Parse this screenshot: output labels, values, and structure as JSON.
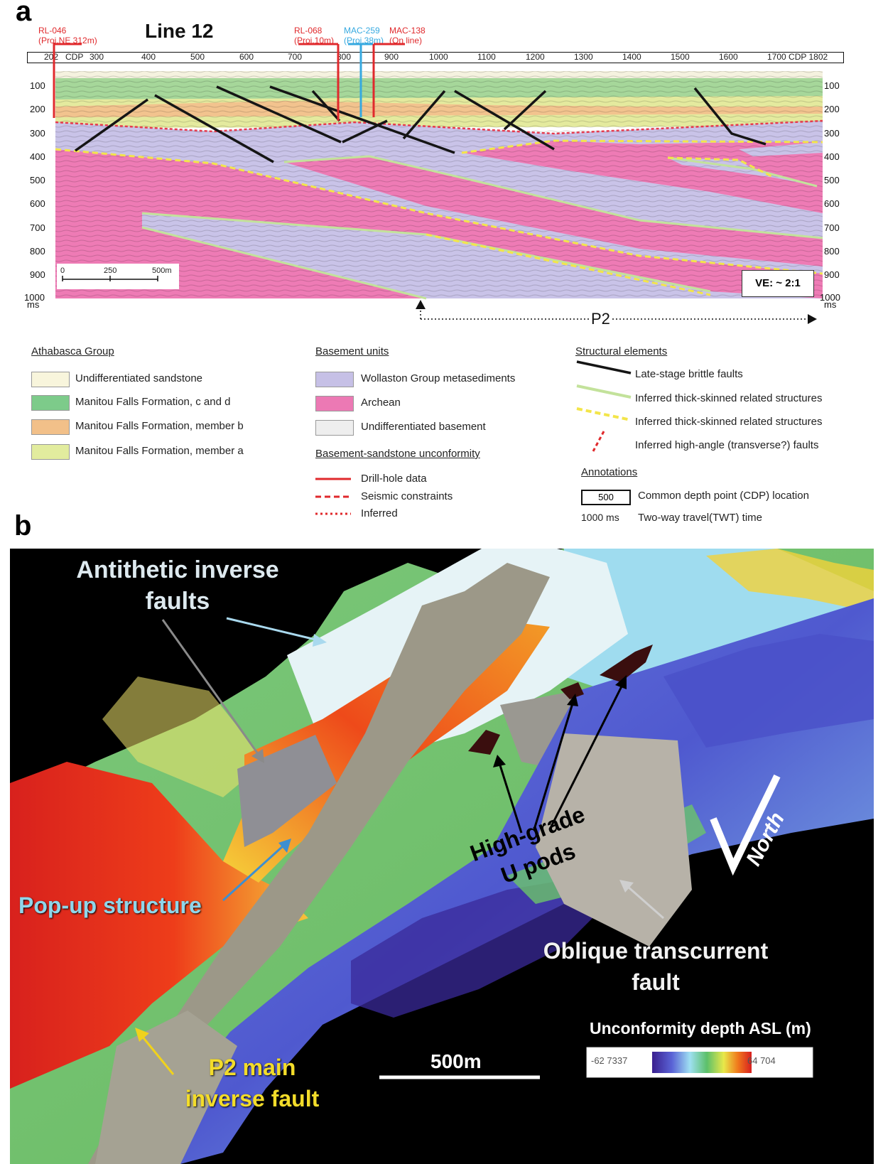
{
  "panel_a": {
    "letter": "a",
    "title": "Line 12",
    "wells": {
      "rl046": {
        "name": "RL-046",
        "proj": "(Proj.NE 312m)"
      },
      "rl068": {
        "name": "RL-068",
        "proj": "(Proj.10m)"
      },
      "mac259": {
        "name": "MAC-259",
        "proj": "(Proj.38m)"
      },
      "mac138": {
        "name": "MAC-138",
        "proj": "(On line)"
      }
    },
    "cdp_ticks": [
      "202",
      "CDP",
      "300",
      "400",
      "500",
      "600",
      "700",
      "800",
      "900",
      "1000",
      "1100",
      "1200",
      "1300",
      "1400",
      "1500",
      "1600",
      "1700 CDP 1802"
    ],
    "depth_ticks": [
      "100",
      "200",
      "300",
      "400",
      "500",
      "600",
      "700",
      "800",
      "900",
      "1000"
    ],
    "depth_unit": "ms",
    "scale_bar": [
      "0",
      "250",
      "500m"
    ],
    "ve": "VE: ~ 2:1",
    "p2": "P2",
    "legend": {
      "athabasca": {
        "heading": "Athabasca Group",
        "items": [
          {
            "label": "Undifferentiated sandstone",
            "color": "#f8f5dc"
          },
          {
            "label": "Manitou Falls Formation, c and d",
            "color": "#7dcb8a"
          },
          {
            "label": "Manitou Falls Formation, member b",
            "color": "#f2c089"
          },
          {
            "label": "Manitou Falls Formation, member a",
            "color": "#e2ec9e"
          }
        ]
      },
      "basement": {
        "heading": "Basement units",
        "items": [
          {
            "label": "Wollaston Group metasediments",
            "color": "#c6c0e6"
          },
          {
            "label": "Archean",
            "color": "#ec79b4"
          },
          {
            "label": "Undifferentiated basement",
            "color": "#eeeeee"
          }
        ]
      },
      "unconformity": {
        "heading": "Basement-sandstone unconformity",
        "items": [
          {
            "label": "Drill-hole data"
          },
          {
            "label": "Seismic constraints"
          },
          {
            "label": "Inferred"
          }
        ]
      },
      "structural": {
        "heading": "Structural elements",
        "items": [
          {
            "label": "Late-stage brittle faults"
          },
          {
            "label": "Inferred thick-skinned related structures"
          },
          {
            "label": "Inferred thick-skinned related structures"
          },
          {
            "label": "Inferred high-angle (transverse?) faults"
          }
        ]
      },
      "annotations": {
        "heading": "Annotations",
        "cdp_box": "500",
        "cdp_label": "Common depth point (CDP) location",
        "twt_value": "1000 ms",
        "twt_label": "Two-way travel(TWT)  time"
      }
    }
  },
  "panel_b": {
    "letter": "b",
    "labels": {
      "antithetic": "Antithetic inverse faults",
      "popup": "Pop-up structure",
      "upods": "High-grade U pods",
      "oblique": "Oblique transcurrent fault",
      "p2main": "P2 main inverse fault",
      "north": "North",
      "scale": "500m",
      "colorbar_title": "Unconformity depth ASL (m)",
      "colorbar_min": "-62 7337",
      "colorbar_max": "64 704"
    }
  }
}
